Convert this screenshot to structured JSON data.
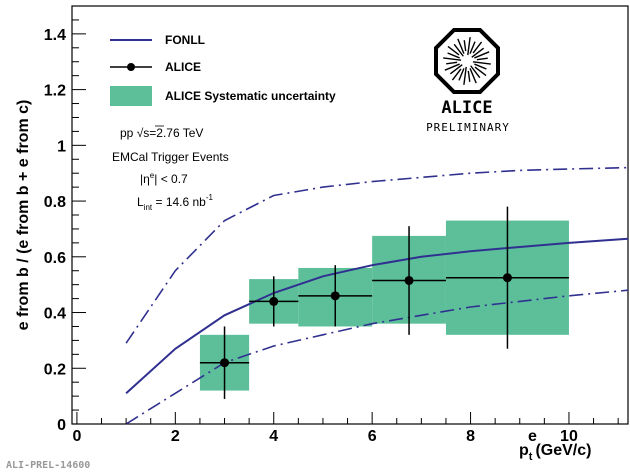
{
  "footer_label": "ALI-PREL-14600",
  "colors": {
    "fonll": "#303090",
    "systematic": "#5cbf9a",
    "data": "#000000"
  },
  "chart_data": {
    "type": "scatter",
    "xlabel_main": "p",
    "xlabel_sub": "t",
    "xlabel_sup": "e",
    "xlabel_unit": "(GeV/c)",
    "ylabel": "e from b / (e from b + e from c)",
    "xlim": [
      -0.1,
      11.2
    ],
    "ylim": [
      0,
      1.5
    ],
    "x_ticks": [
      0,
      2,
      4,
      6,
      8,
      10
    ],
    "y_ticks": [
      0,
      0.2,
      0.4,
      0.6,
      0.8,
      1,
      1.2,
      1.4
    ],
    "y_tick_labels": [
      "0",
      "0.2",
      "0.4",
      "0.6",
      "0.8",
      "1",
      "1.2",
      "1.4"
    ],
    "legend": [
      {
        "label": "FONLL",
        "kind": "line"
      },
      {
        "label": "ALICE",
        "kind": "marker"
      },
      {
        "label": "ALICE Systematic uncertainty",
        "kind": "box"
      }
    ],
    "annotations": {
      "line1_prefix": "pp  ",
      "line1_sqrt": "√",
      "line1_s": "s",
      "line1_value": "=2.76 TeV",
      "line2": "EMCal Trigger Events",
      "eta_main": "|η",
      "eta_sup": "e",
      "eta_rest": "| < 0.7",
      "lumi_main": "L",
      "lumi_sub": "int",
      "lumi_rest": " = 14.6 nb",
      "lumi_sup": "-1"
    },
    "logo_label": "ALICE",
    "logo_sublabel": "PRELIMINARY",
    "series": [
      {
        "name": "ALICE",
        "points": [
          {
            "x": 3.0,
            "xlo": 2.5,
            "xhi": 3.5,
            "y": 0.22,
            "stat_lo": 0.09,
            "stat_hi": 0.35,
            "sys_lo": 0.12,
            "sys_hi": 0.32
          },
          {
            "x": 4.0,
            "xlo": 3.5,
            "xhi": 4.5,
            "y": 0.44,
            "stat_lo": 0.35,
            "stat_hi": 0.53,
            "sys_lo": 0.36,
            "sys_hi": 0.52
          },
          {
            "x": 5.25,
            "xlo": 4.5,
            "xhi": 6.0,
            "y": 0.46,
            "stat_lo": 0.35,
            "stat_hi": 0.57,
            "sys_lo": 0.35,
            "sys_hi": 0.56
          },
          {
            "x": 6.75,
            "xlo": 6.0,
            "xhi": 7.5,
            "y": 0.515,
            "stat_lo": 0.32,
            "stat_hi": 0.71,
            "sys_lo": 0.36,
            "sys_hi": 0.675
          },
          {
            "x": 8.75,
            "xlo": 7.5,
            "xhi": 10.0,
            "y": 0.525,
            "stat_lo": 0.27,
            "stat_hi": 0.78,
            "sys_lo": 0.32,
            "sys_hi": 0.73
          }
        ]
      },
      {
        "name": "FONLL",
        "x": [
          1,
          2,
          3,
          4,
          5,
          6,
          7,
          8,
          9,
          10,
          11.2
        ],
        "central": [
          0.11,
          0.27,
          0.39,
          0.47,
          0.53,
          0.57,
          0.6,
          0.62,
          0.635,
          0.65,
          0.665
        ],
        "upper": [
          0.29,
          0.55,
          0.73,
          0.82,
          0.85,
          0.87,
          0.885,
          0.9,
          0.91,
          0.915,
          0.92
        ],
        "lower": [
          0.0,
          0.11,
          0.22,
          0.28,
          0.32,
          0.36,
          0.39,
          0.42,
          0.44,
          0.46,
          0.48
        ]
      }
    ]
  }
}
